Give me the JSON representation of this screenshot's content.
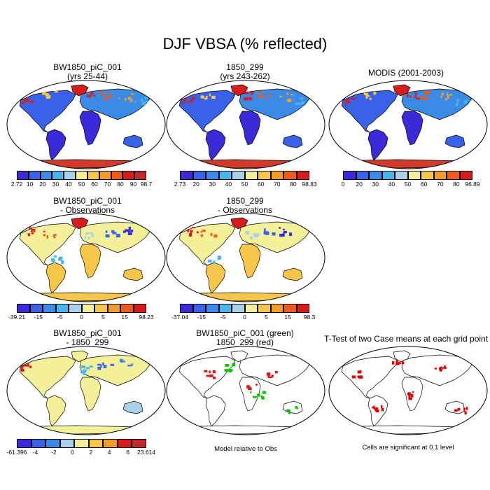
{
  "title": "DJF VBSA (% reflected)",
  "panels": [
    {
      "id": "p1",
      "title_lines": [
        "BW1850_piC_001",
        "(yrs 25-44)"
      ],
      "style": "abs",
      "colorbar": {
        "colors": [
          "#3a2ad8",
          "#3a62e8",
          "#3b8ae6",
          "#47b6ec",
          "#a8d2ea",
          "#f4f09a",
          "#f6c64a",
          "#f59a2c",
          "#ee5a1c",
          "#d81c1c",
          "#c02a2a"
        ],
        "labels": [
          "2.72",
          "10",
          "20",
          "30",
          "40",
          "50",
          "60",
          "70",
          "80",
          "90",
          "98.7"
        ]
      }
    },
    {
      "id": "p2",
      "title_lines": [
        "1850_299",
        "(yrs 243-262)"
      ],
      "style": "abs",
      "colorbar": {
        "colors": [
          "#3a2ad8",
          "#3a62e8",
          "#3b8ae6",
          "#47b6ec",
          "#a8d2ea",
          "#f4f09a",
          "#f6c64a",
          "#f59a2c",
          "#ee5a1c",
          "#d81c1c"
        ],
        "labels": [
          "2.73",
          "20",
          "30",
          "40",
          "50",
          "60",
          "70",
          "80",
          "98.83"
        ]
      }
    },
    {
      "id": "p3",
      "title_lines": [
        "MODIS (2001-2003)"
      ],
      "style": "abs",
      "colorbar": {
        "colors": [
          "#3a2ad8",
          "#3a62e8",
          "#3b8ae6",
          "#47b6ec",
          "#a8d2ea",
          "#f4f09a",
          "#f6c64a",
          "#f59a2c",
          "#ee5a1c",
          "#d81c1c"
        ],
        "labels": [
          "0",
          "20",
          "30",
          "40",
          "50",
          "60",
          "70",
          "80",
          "96.89"
        ]
      }
    },
    {
      "id": "p4",
      "title_lines": [
        "BW1850_piC_001",
        "- Observations"
      ],
      "style": "diff",
      "colorbar": {
        "colors": [
          "#3a2ad8",
          "#3a62e8",
          "#3b8ae6",
          "#47b6ec",
          "#a8d2ea",
          "#f4f09a",
          "#f6c64a",
          "#f59a2c",
          "#ee5a1c",
          "#d81c1c"
        ],
        "labels": [
          "-39.21",
          "-15",
          "-5",
          "0",
          "5",
          "15",
          "98.23"
        ]
      }
    },
    {
      "id": "p5",
      "title_lines": [
        "1850_299",
        "- Observations"
      ],
      "style": "diff",
      "colorbar": {
        "colors": [
          "#3a2ad8",
          "#3a62e8",
          "#3b8ae6",
          "#47b6ec",
          "#a8d2ea",
          "#f4f09a",
          "#f6c64a",
          "#f59a2c",
          "#ee5a1c",
          "#d81c1c"
        ],
        "labels": [
          "-37.04",
          "-15",
          "-5",
          "0",
          "5",
          "15",
          "98.3"
        ]
      }
    },
    {
      "id": "p6",
      "title_lines": [
        "BW1850_piC_001",
        "- 1850_299"
      ],
      "style": "diff2",
      "colorbar": {
        "colors": [
          "#3a2ad8",
          "#3a62e8",
          "#3b8ae6",
          "#a8d2ea",
          "#f4f09a",
          "#f6c64a",
          "#f59a2c",
          "#d81c1c",
          "#c02a2a"
        ],
        "labels": [
          "-61.396",
          "-4",
          "-2",
          "0",
          "2",
          "4",
          "6",
          "23.614"
        ]
      }
    },
    {
      "id": "p7",
      "title_lines": [
        "BW1850_piC_001 (green)",
        "1850_299 (red)"
      ],
      "style": "green-red",
      "note": "Model relative to Obs"
    },
    {
      "id": "p8",
      "title_lines": [
        "T-Test of two Case means at each grid point"
      ],
      "style": "ttest",
      "note": "Cells are significant at 0.1 level"
    }
  ]
}
